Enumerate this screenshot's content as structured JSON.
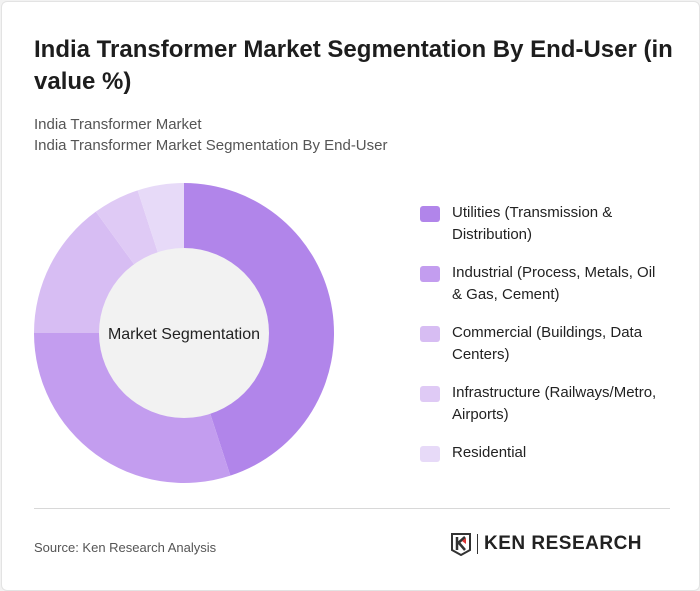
{
  "title": "India Transformer Market Segmentation By End-User (in value %)",
  "subtitle1": "India Transformer Market",
  "subtitle2": "India Transformer Market Segmentation By End-User",
  "source": "Source: Ken Research Analysis",
  "logo_text": "KEN RESEARCH",
  "chart_data": {
    "type": "pie",
    "variant": "donut",
    "center_label": "Market Segmentation",
    "categories": [
      "Utilities (Transmission & Distribution)",
      "Industrial (Process, Metals, Oil & Gas, Cement)",
      "Commercial (Buildings, Data Centers)",
      "Infrastructure (Railways/Metro, Airports)",
      "Residential"
    ],
    "values": [
      45,
      30,
      15,
      5,
      5
    ],
    "unit": "%",
    "colors": [
      "#b185ea",
      "#c39def",
      "#d7bdf3",
      "#dfcaf5",
      "#e7daf8"
    ],
    "legend_position": "right"
  }
}
